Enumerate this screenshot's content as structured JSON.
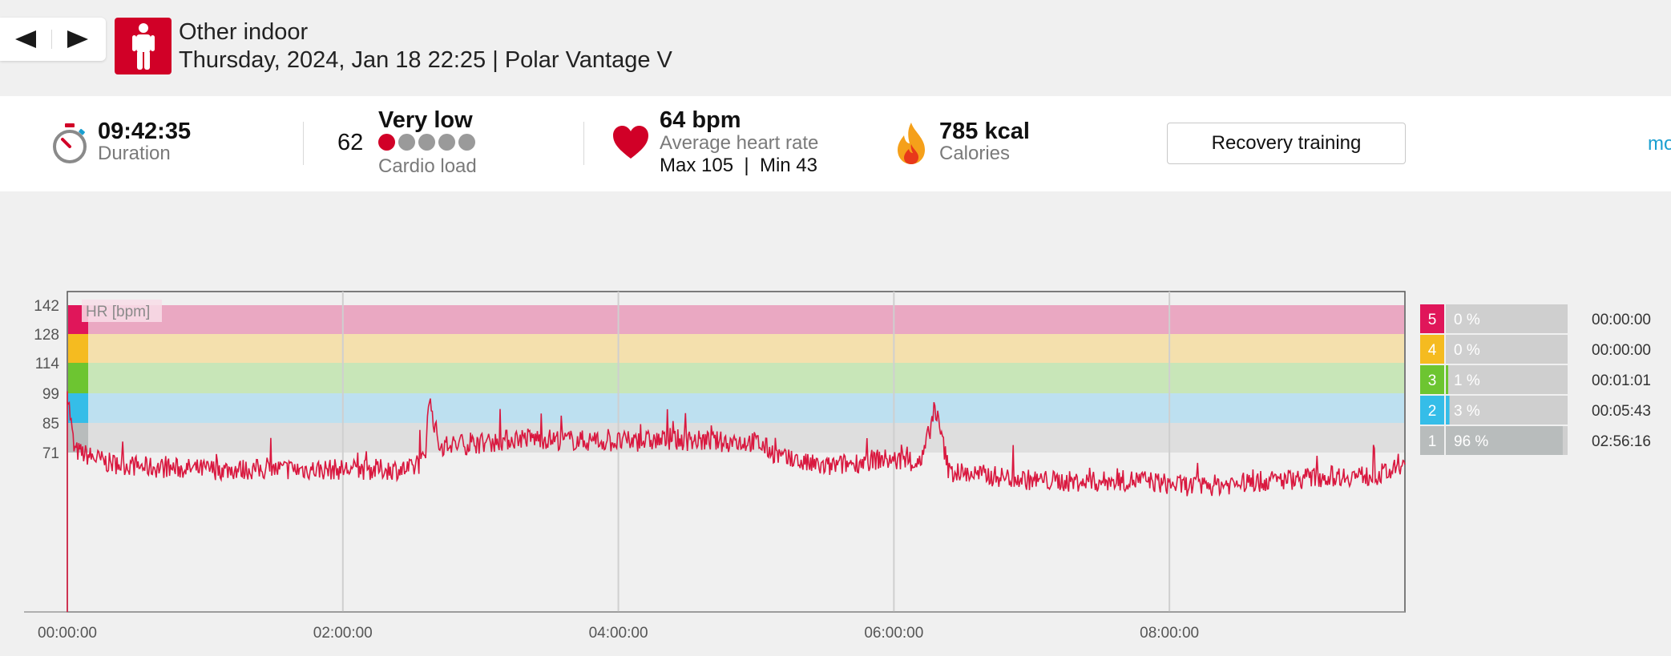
{
  "header": {
    "sport": "Other indoor",
    "subtitle": "Thursday, 2024, Jan 18 22:25 | Polar Vantage V",
    "prev_icon": "triangle-left-icon",
    "next_icon": "triangle-right-icon",
    "sport_icon": "person-standing-icon",
    "accent": "#d10027"
  },
  "summary": {
    "duration_value": "09:42:35",
    "duration_label": "Duration",
    "cardio_number": "62",
    "cardio_level": "Very low",
    "cardio_label": "Cardio load",
    "cardio_dots_filled": 1,
    "cardio_dots_total": 5,
    "hr_value": "64 bpm",
    "hr_label": "Average heart rate",
    "hr_minmax": "Max 105  |  Min 43",
    "calories_value": "785 kcal",
    "calories_label": "Calories",
    "benefit_button": "Recovery training",
    "more_link": "mo"
  },
  "chart_data": {
    "type": "line",
    "hr_label": "HR [bpm]",
    "y_ticks": [
      "142",
      "128",
      "114",
      "99",
      "85",
      "71"
    ],
    "y_tick_values": [
      142,
      128,
      114,
      99,
      85,
      71
    ],
    "x_ticks": [
      "00:00:00",
      "02:00:00",
      "04:00:00",
      "06:00:00",
      "08:00:00"
    ],
    "x_tick_hours": [
      0,
      2,
      4,
      6,
      8
    ],
    "duration_hours": 9.7097,
    "line_color": "#d9183f",
    "zones": [
      {
        "num": "5",
        "pct": "0 %",
        "time": "00:00:00",
        "lo": 142,
        "hi": 156,
        "band": "#eaa8c2",
        "solid": "#e0165a",
        "fraction": 0.0
      },
      {
        "num": "4",
        "pct": "0 %",
        "time": "00:00:00",
        "lo": 128,
        "hi": 142,
        "band": "#f4e0ad",
        "solid": "#f5bb20",
        "fraction": 0.0
      },
      {
        "num": "3",
        "pct": "1 %",
        "time": "00:01:01",
        "lo": 114,
        "hi": 128,
        "band": "#c8e6b8",
        "solid": "#6dc531",
        "fraction": 0.01
      },
      {
        "num": "2",
        "pct": "3 %",
        "time": "00:05:43",
        "lo": 99,
        "hi": 114,
        "band": "#bde0f0",
        "solid": "#35bde8",
        "fraction": 0.03
      },
      {
        "num": "1",
        "pct": "96 %",
        "time": "02:56:16",
        "lo": 85,
        "hi": 99,
        "band": "#dedede",
        "solid": "#b8bcbc",
        "fraction": 0.96
      }
    ],
    "series": [
      {
        "name": "HR [bpm]",
        "x": [
          0,
          0.05,
          0.3,
          0.6,
          1.0,
          1.4,
          1.8,
          2.2,
          2.5,
          2.6,
          2.62,
          2.7,
          2.9,
          3.1,
          3.3,
          3.6,
          4.0,
          4.4,
          4.8,
          5.0,
          5.2,
          5.5,
          5.9,
          6.2,
          6.3,
          6.4,
          6.7,
          7.0,
          7.4,
          7.8,
          8.0,
          8.2,
          8.4,
          8.8,
          9.2,
          9.5,
          9.7
        ],
        "y": [
          100,
          72,
          66,
          64,
          63,
          63,
          63,
          63,
          63,
          68,
          98,
          74,
          75,
          76,
          78,
          77,
          76,
          77,
          76,
          76,
          68,
          64,
          68,
          66,
          92,
          62,
          60,
          58,
          57,
          58,
          56,
          55,
          56,
          58,
          60,
          60,
          64
        ]
      }
    ]
  }
}
